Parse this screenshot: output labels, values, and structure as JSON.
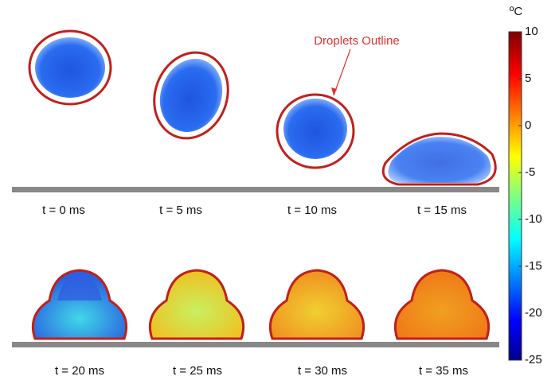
{
  "annotation": "Droplets Outline",
  "frames": [
    "t = 0 ms",
    "t = 5 ms",
    "t = 10 ms",
    "t = 15 ms",
    "t = 20 ms",
    "t = 25 ms",
    "t = 30 ms",
    "t = 35 ms"
  ],
  "colorbar": {
    "unit": "ºC",
    "lim": [
      -25,
      10
    ],
    "ticks": [
      10,
      5,
      0,
      -5,
      -10,
      -15,
      -20,
      -25
    ]
  }
}
